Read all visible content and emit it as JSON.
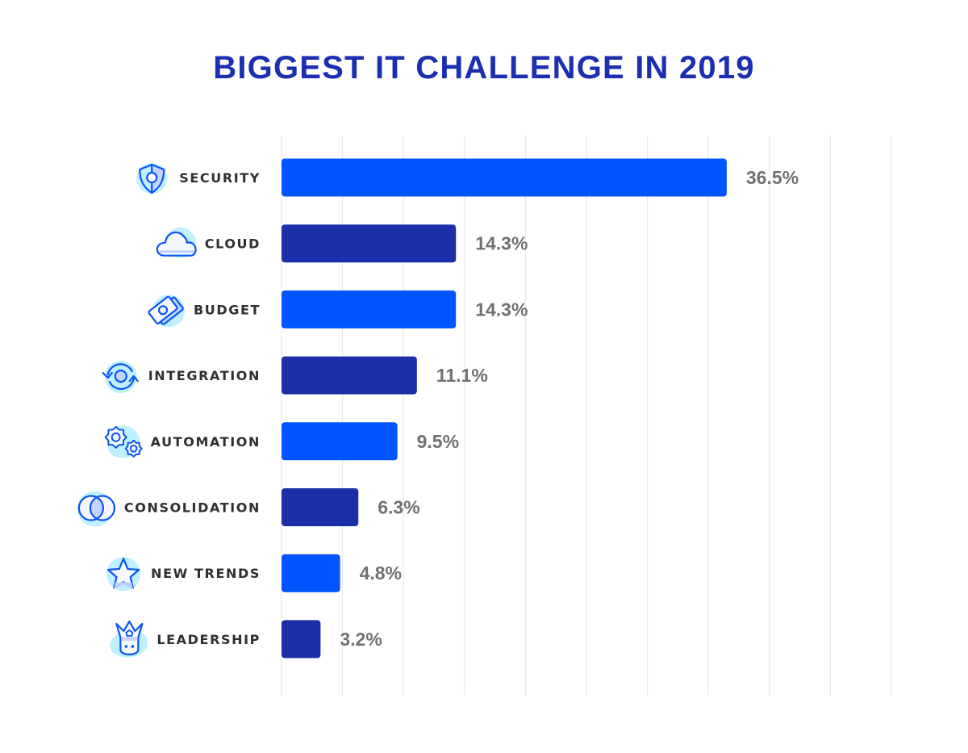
{
  "chart_data": {
    "type": "bar",
    "orientation": "horizontal",
    "title": "BIGGEST IT CHALLENGE IN 2019",
    "xlabel": "",
    "ylabel": "",
    "xlim": [
      0,
      50
    ],
    "grid": true,
    "grid_step": 5,
    "value_suffix": "%",
    "categories": [
      "SECURITY",
      "CLOUD",
      "BUDGET",
      "INTEGRATION",
      "AUTOMATION",
      "CONSOLIDATION",
      "NEW TRENDS",
      "LEADERSHIP"
    ],
    "values": [
      36.5,
      14.3,
      14.3,
      11.1,
      9.5,
      6.3,
      4.8,
      3.2
    ],
    "value_labels": [
      "36.5%",
      "14.3%",
      "14.3%",
      "11.1%",
      "9.5%",
      "6.3%",
      "4.8%",
      "3.2%"
    ],
    "icons": [
      "shield-icon",
      "cloud-icon",
      "money-icon",
      "sync-icon",
      "gears-icon",
      "venn-icon",
      "star-icon",
      "crown-icon"
    ],
    "colors": {
      "bar_primary": "#0055ff",
      "bar_secondary": "#1b2fa8",
      "title": "#1b2fb0",
      "grid": "#e6eaf2",
      "icon_stroke": "#0a55f0",
      "icon_blob": "#bff0ff",
      "icon_fill": "#c4d4ff"
    },
    "bar_color_pattern": [
      "primary",
      "secondary",
      "primary",
      "secondary",
      "primary",
      "secondary",
      "primary",
      "secondary"
    ]
  }
}
